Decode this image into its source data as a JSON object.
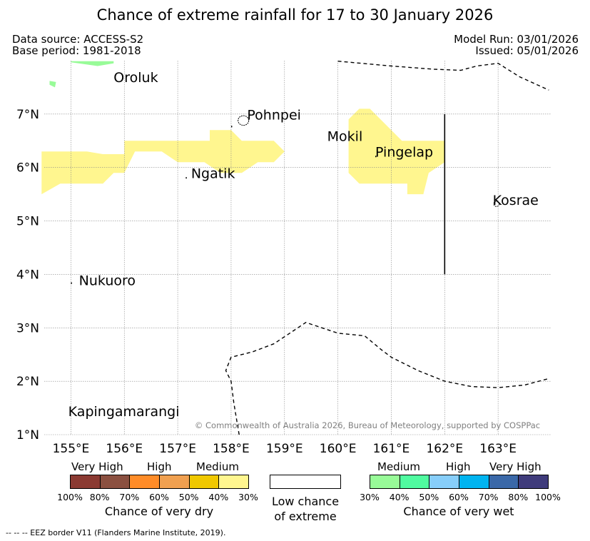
{
  "title": "Chance of extreme rainfall for 17 to 30 January 2026",
  "data_source": "Data source: ACCESS-S2",
  "base_period": "Base period: 1981-2018",
  "model_run": "Model Run: 03/01/2026",
  "issued": "Issued: 05/01/2026",
  "copyright": "© Commonwealth of Australia 2026, Bureau of Meteorology, supported by COSPPac",
  "footnote": "-- --  -- EEZ border V11 (Flanders Marine Institute, 2019).",
  "map": {
    "lon_range": [
      154.5,
      164.0
    ],
    "lat_range": [
      1.0,
      8.0
    ],
    "lon_ticks": [
      {
        "value": 155,
        "label": "155°E"
      },
      {
        "value": 156,
        "label": "156°E"
      },
      {
        "value": 157,
        "label": "157°E"
      },
      {
        "value": 158,
        "label": "158°E"
      },
      {
        "value": 159,
        "label": "159°E"
      },
      {
        "value": 160,
        "label": "160°E"
      },
      {
        "value": 161,
        "label": "161°E"
      },
      {
        "value": 162,
        "label": "162°E"
      },
      {
        "value": 163,
        "label": "163°E"
      }
    ],
    "lat_ticks": [
      {
        "value": 1,
        "label": "1°N"
      },
      {
        "value": 2,
        "label": "2°N"
      },
      {
        "value": 3,
        "label": "3°N"
      },
      {
        "value": 4,
        "label": "4°N"
      },
      {
        "value": 5,
        "label": "5°N"
      },
      {
        "value": 6,
        "label": "6°N"
      },
      {
        "value": 7,
        "label": "7°N"
      }
    ],
    "places": [
      {
        "name": "Oroluk",
        "lon": 155.8,
        "lat": 7.6
      },
      {
        "name": "Pohnpei",
        "lon": 158.3,
        "lat": 6.9
      },
      {
        "name": "Mokil",
        "lon": 159.8,
        "lat": 6.5
      },
      {
        "name": "Pingelap",
        "lon": 160.7,
        "lat": 6.2
      },
      {
        "name": "Ngatik",
        "lon": 157.25,
        "lat": 5.8
      },
      {
        "name": "Kosrae",
        "lon": 162.9,
        "lat": 5.3
      },
      {
        "name": "Nukuoro",
        "lon": 155.15,
        "lat": 3.8
      },
      {
        "name": "Kapingamarangi",
        "lon": 154.95,
        "lat": 1.35
      }
    ],
    "regions": [
      {
        "category": "medium-dry",
        "color": "#fff68f",
        "points": [
          [
            154.45,
            6.3
          ],
          [
            155.3,
            6.3
          ],
          [
            155.6,
            6.25
          ],
          [
            156.0,
            6.25
          ],
          [
            156.0,
            6.5
          ],
          [
            156.8,
            6.5
          ],
          [
            157.0,
            6.5
          ],
          [
            157.6,
            6.5
          ],
          [
            157.6,
            6.7
          ],
          [
            158.0,
            6.7
          ],
          [
            158.2,
            6.5
          ],
          [
            158.8,
            6.5
          ],
          [
            159.0,
            6.3
          ],
          [
            158.8,
            6.1
          ],
          [
            158.5,
            6.1
          ],
          [
            158.2,
            5.9
          ],
          [
            157.8,
            5.9
          ],
          [
            157.5,
            6.1
          ],
          [
            157.0,
            6.1
          ],
          [
            156.7,
            6.3
          ],
          [
            156.2,
            6.3
          ],
          [
            156.0,
            5.9
          ],
          [
            155.8,
            5.9
          ],
          [
            155.6,
            5.7
          ],
          [
            154.8,
            5.7
          ],
          [
            154.45,
            5.5
          ]
        ]
      },
      {
        "category": "medium-dry",
        "color": "#fff68f",
        "points": [
          [
            160.2,
            6.9
          ],
          [
            160.4,
            7.1
          ],
          [
            160.6,
            7.1
          ],
          [
            161.2,
            6.5
          ],
          [
            162.0,
            6.5
          ],
          [
            162.0,
            6.1
          ],
          [
            161.7,
            5.9
          ],
          [
            161.6,
            5.5
          ],
          [
            161.3,
            5.5
          ],
          [
            161.3,
            5.7
          ],
          [
            160.8,
            5.7
          ],
          [
            160.4,
            5.7
          ],
          [
            160.2,
            5.9
          ]
        ]
      },
      {
        "category": "medium-wet",
        "color": "#98fb98",
        "points": [
          [
            155.0,
            7.97
          ],
          [
            155.5,
            7.9
          ],
          [
            155.8,
            7.95
          ],
          [
            155.8,
            7.99
          ],
          [
            155.0,
            7.99
          ]
        ]
      },
      {
        "category": "medium-wet",
        "color": "#98fb98",
        "points": [
          [
            154.6,
            7.55
          ],
          [
            154.7,
            7.5
          ],
          [
            154.72,
            7.6
          ],
          [
            154.6,
            7.62
          ]
        ]
      }
    ],
    "eez_lines": [
      [
        [
          160.0,
          7.99
        ],
        [
          161.0,
          7.9
        ],
        [
          161.8,
          7.84
        ],
        [
          162.3,
          7.82
        ],
        [
          162.6,
          7.9
        ],
        [
          163.0,
          7.95
        ],
        [
          163.4,
          7.7
        ],
        [
          163.95,
          7.45
        ]
      ],
      [
        [
          158.15,
          1.0
        ],
        [
          158.1,
          1.3
        ],
        [
          158.05,
          1.6
        ],
        [
          158.0,
          2.0
        ],
        [
          157.9,
          2.2
        ],
        [
          158.0,
          2.45
        ],
        [
          158.4,
          2.55
        ],
        [
          158.8,
          2.7
        ],
        [
          159.1,
          2.9
        ],
        [
          159.4,
          3.1
        ],
        [
          159.7,
          3.0
        ],
        [
          160.0,
          2.9
        ],
        [
          160.5,
          2.85
        ],
        [
          160.8,
          2.6
        ],
        [
          161.0,
          2.45
        ],
        [
          161.5,
          2.2
        ],
        [
          162.0,
          2.0
        ],
        [
          162.5,
          1.9
        ],
        [
          163.0,
          1.88
        ],
        [
          163.5,
          1.93
        ],
        [
          163.95,
          2.05
        ]
      ]
    ],
    "boundary_line": [
      [
        162.0,
        7.0
      ],
      [
        162.0,
        4.0
      ]
    ],
    "islands": [
      {
        "name": "pohnpei",
        "lon": 158.23,
        "lat": 6.88,
        "rx": 0.1,
        "ry": 0.09
      },
      {
        "name": "kosrae",
        "lon": 162.97,
        "lat": 5.32,
        "rx": 0.05,
        "ry": 0.05
      },
      {
        "name": "mokil-dot",
        "lon": 160.7,
        "lat": 6.22,
        "rx": 0.01,
        "ry": 0.01
      },
      {
        "name": "ngatik-dot",
        "lon": 157.15,
        "lat": 5.82,
        "rx": 0.01,
        "ry": 0.01
      },
      {
        "name": "nukuoro-dot",
        "lon": 155.0,
        "lat": 3.85,
        "rx": 0.01,
        "ry": 0.01
      },
      {
        "name": "oroluk-dot",
        "lon": 158.0,
        "lat": 6.78,
        "rx": 0.01,
        "ry": 0.01
      }
    ]
  },
  "legend": {
    "dry": {
      "headers": [
        "Very High",
        "High",
        "Medium"
      ],
      "colors": [
        "#8b3a32",
        "#8b5040",
        "#ff8c28",
        "#f0a050",
        "#f0c800",
        "#fff68f"
      ],
      "tick_labels": [
        "100%",
        "80%",
        "70%",
        "60%",
        "50%",
        "40%",
        "30%"
      ],
      "caption": "Chance of very dry"
    },
    "neutral": {
      "caption_line1": "Low chance",
      "caption_line2": "of extreme"
    },
    "wet": {
      "headers": [
        "Medium",
        "High",
        "Very High"
      ],
      "colors": [
        "#98fb98",
        "#50fba0",
        "#87cefa",
        "#00b4f0",
        "#3a68a8",
        "#3f3b7b"
      ],
      "tick_labels": [
        "30%",
        "40%",
        "50%",
        "60%",
        "70%",
        "80%",
        "100%"
      ],
      "caption": "Chance of very wet"
    }
  }
}
